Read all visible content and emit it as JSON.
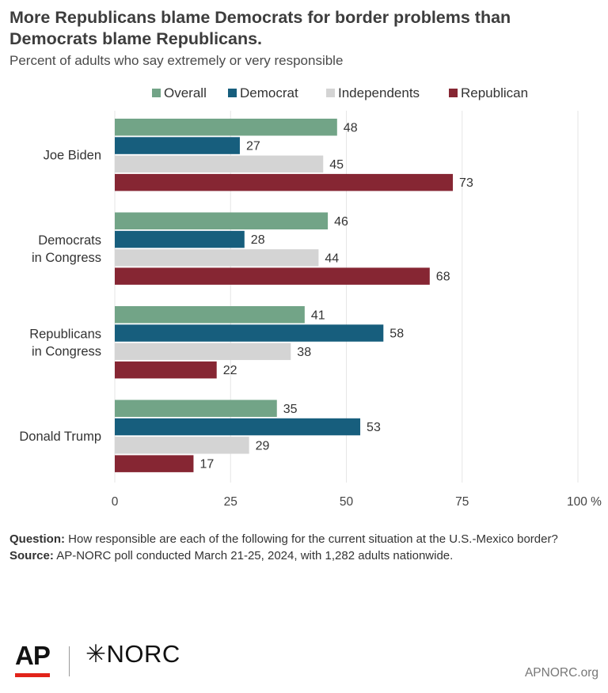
{
  "title": "More Republicans blame Democrats for border problems than Democrats blame Republicans.",
  "subtitle": "Percent of adults who say extremely or very responsible",
  "chart_data": {
    "type": "bar",
    "orientation": "horizontal",
    "categories": [
      [
        "Joe Biden"
      ],
      [
        "Democrats",
        "in Congress"
      ],
      [
        "Republicans",
        "in Congress"
      ],
      [
        "Donald Trump"
      ]
    ],
    "series": [
      {
        "name": "Overall",
        "color": "#72a487",
        "values": [
          48,
          46,
          41,
          35
        ]
      },
      {
        "name": "Democrat",
        "color": "#175e7d",
        "values": [
          27,
          28,
          58,
          53
        ]
      },
      {
        "name": "Independents",
        "color": "#d4d4d4",
        "values": [
          45,
          44,
          38,
          29
        ]
      },
      {
        "name": "Republican",
        "color": "#862633",
        "values": [
          73,
          68,
          22,
          17
        ]
      }
    ],
    "xlim": [
      0,
      100
    ],
    "xticks": [
      "0",
      "25",
      "50",
      "75",
      "100 %"
    ],
    "xtick_values": [
      0,
      25,
      50,
      75,
      100
    ],
    "grid": true,
    "legend_position": "top"
  },
  "notes": {
    "question_label": "Question:",
    "question_text": "How responsible are each of the following for the current situation at the U.S.-Mexico border?",
    "source_label": "Source:",
    "source_text": "AP-NORC poll conducted March 21-25, 2024, with 1,282 adults nationwide."
  },
  "logos": {
    "ap": "AP",
    "norc": "✳NORC"
  },
  "footer": {
    "url": "APNORC.org"
  }
}
